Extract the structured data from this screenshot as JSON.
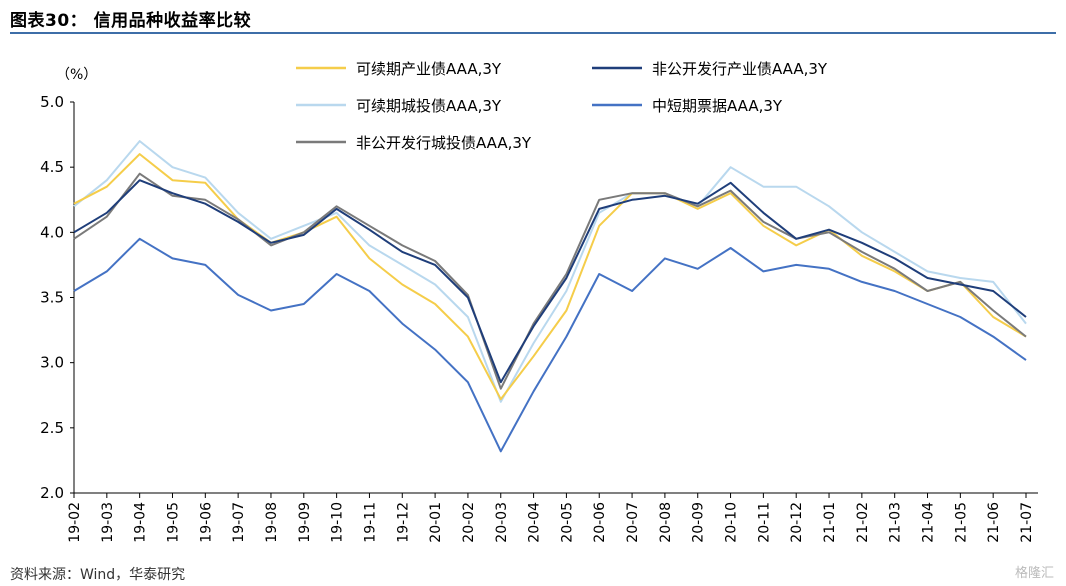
{
  "figure": {
    "title": "图表30： 信用品种收益率比较",
    "source": "资料来源：Wind，华泰研究",
    "watermark": "格隆汇"
  },
  "chart_data": {
    "type": "line",
    "ylabel": "（%）",
    "ylim": [
      2.0,
      5.0
    ],
    "yticks": [
      "5.0",
      "4.5",
      "4.0",
      "3.5",
      "3.0",
      "2.5",
      "2.0"
    ],
    "x_range": [
      "19-02",
      "21-07"
    ],
    "categories": [
      "19-02",
      "19-03",
      "19-04",
      "19-05",
      "19-06",
      "19-07",
      "19-08",
      "19-09",
      "19-10",
      "19-11",
      "19-12",
      "20-01",
      "20-02",
      "20-03",
      "20-04",
      "20-05",
      "20-06",
      "20-07",
      "20-08",
      "20-09",
      "20-10",
      "20-11",
      "20-12",
      "21-01",
      "21-02",
      "21-03",
      "21-04",
      "21-05",
      "21-06",
      "21-07"
    ],
    "legend_position": "top",
    "grid": false,
    "series": [
      {
        "name": "可续期产业债AAA,3Y",
        "color": "#f5cd4a",
        "values": [
          4.22,
          4.35,
          4.6,
          4.4,
          4.38,
          4.1,
          3.92,
          4.0,
          4.12,
          3.8,
          3.6,
          3.45,
          3.2,
          2.72,
          3.05,
          3.4,
          4.05,
          4.3,
          4.3,
          4.18,
          4.3,
          4.05,
          3.9,
          4.02,
          3.82,
          3.7,
          3.55,
          3.62,
          3.35,
          3.2
        ]
      },
      {
        "name": "非公开发行产业债AAA,3Y",
        "color": "#1f3e7a",
        "values": [
          4.0,
          4.15,
          4.4,
          4.3,
          4.22,
          4.08,
          3.92,
          3.98,
          4.18,
          4.02,
          3.85,
          3.75,
          3.5,
          2.85,
          3.28,
          3.65,
          4.18,
          4.25,
          4.28,
          4.22,
          4.38,
          4.15,
          3.95,
          4.02,
          3.92,
          3.8,
          3.65,
          3.6,
          3.55,
          3.35
        ]
      },
      {
        "name": "可续期城投债AAA,3Y",
        "color": "#b9d8ee",
        "values": [
          4.2,
          4.4,
          4.7,
          4.5,
          4.42,
          4.15,
          3.95,
          4.05,
          4.15,
          3.9,
          3.75,
          3.6,
          3.35,
          2.7,
          3.15,
          3.55,
          4.15,
          4.3,
          4.3,
          4.2,
          4.5,
          4.35,
          4.35,
          4.2,
          4.0,
          3.85,
          3.7,
          3.65,
          3.62,
          3.3
        ]
      },
      {
        "name": "中短期票据AAA,3Y",
        "color": "#4472c4",
        "values": [
          3.55,
          3.7,
          3.95,
          3.8,
          3.75,
          3.52,
          3.4,
          3.45,
          3.68,
          3.55,
          3.3,
          3.1,
          2.85,
          2.32,
          2.78,
          3.2,
          3.68,
          3.55,
          3.8,
          3.72,
          3.88,
          3.7,
          3.75,
          3.72,
          3.62,
          3.55,
          3.45,
          3.35,
          3.2,
          3.02
        ]
      },
      {
        "name": "非公开发行城投债AAA,3Y",
        "color": "#7a7a7a",
        "values": [
          3.95,
          4.12,
          4.45,
          4.28,
          4.25,
          4.1,
          3.9,
          4.0,
          4.2,
          4.05,
          3.9,
          3.78,
          3.52,
          2.8,
          3.3,
          3.68,
          4.25,
          4.3,
          4.3,
          4.2,
          4.32,
          4.08,
          3.95,
          4.0,
          3.85,
          3.72,
          3.55,
          3.62,
          3.4,
          3.2
        ]
      }
    ]
  }
}
